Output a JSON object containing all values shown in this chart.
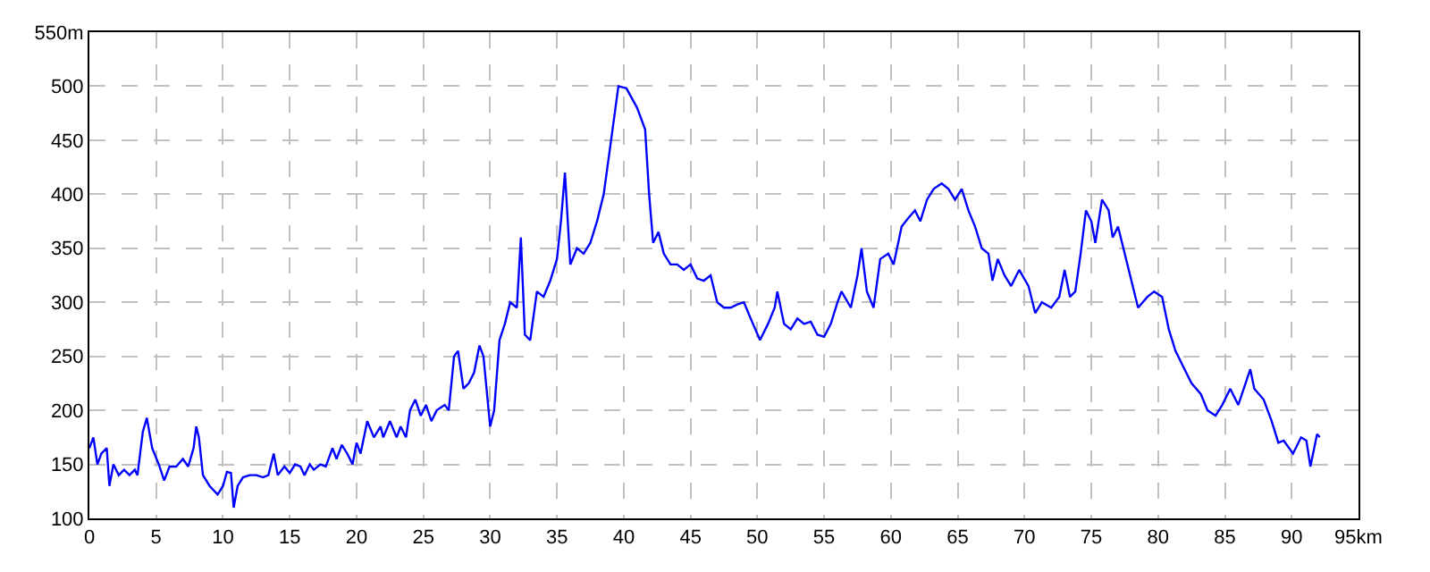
{
  "chart_data": {
    "type": "line",
    "grid": true,
    "marker": "none",
    "line_style": "solid",
    "xlim": [
      0,
      95
    ],
    "ylim": [
      100,
      550
    ],
    "xticks": [
      0,
      5,
      10,
      15,
      20,
      25,
      30,
      35,
      40,
      45,
      50,
      55,
      60,
      65,
      70,
      75,
      80,
      85,
      90,
      {
        "value": 95,
        "label": "95km"
      }
    ],
    "yticks": [
      100,
      150,
      200,
      250,
      300,
      350,
      400,
      450,
      500,
      {
        "value": 550,
        "label": "550m"
      }
    ],
    "series": [
      {
        "color": "#0000ff",
        "x": [
          0,
          0.3,
          0.6,
          0.9,
          1.3,
          1.5,
          1.8,
          2.2,
          2.6,
          3.0,
          3.4,
          3.6,
          4.0,
          4.3,
          4.7,
          5.2,
          5.6,
          6.0,
          6.5,
          7.0,
          7.4,
          7.8,
          8.0,
          8.2,
          8.5,
          9.0,
          9.6,
          10.0,
          10.3,
          10.6,
          10.8,
          11.1,
          11.5,
          12.0,
          12.5,
          13.0,
          13.4,
          13.8,
          14.1,
          14.6,
          15.0,
          15.4,
          15.8,
          16.1,
          16.5,
          16.8,
          17.3,
          17.7,
          18.2,
          18.5,
          18.9,
          19.3,
          19.7,
          20.0,
          20.3,
          20.8,
          21.3,
          21.8,
          22.0,
          22.5,
          23.0,
          23.3,
          23.7,
          24.0,
          24.4,
          24.8,
          25.2,
          25.6,
          26.0,
          26.6,
          26.9,
          27.3,
          27.6,
          28.0,
          28.4,
          28.8,
          29.2,
          29.5,
          30.0,
          30.3,
          30.7,
          31.1,
          31.5,
          32.0,
          32.3,
          32.6,
          33.0,
          33.5,
          34.0,
          34.5,
          35.0,
          35.3,
          35.6,
          36.0,
          36.5,
          37.0,
          37.5,
          38.0,
          38.5,
          39.0,
          39.6,
          40.2,
          41.0,
          41.6,
          41.9,
          42.2,
          42.6,
          43.0,
          43.5,
          44.0,
          44.5,
          45.0,
          45.5,
          46.0,
          46.5,
          47.0,
          47.5,
          48.0,
          48.5,
          49.0,
          49.5,
          50.2,
          50.8,
          51.3,
          51.5,
          52.0,
          52.5,
          53.0,
          53.5,
          54.0,
          54.5,
          55.0,
          55.5,
          56.0,
          56.3,
          57.0,
          57.5,
          57.8,
          58.2,
          58.7,
          59.2,
          59.8,
          60.2,
          60.8,
          61.3,
          61.8,
          62.2,
          62.7,
          63.2,
          63.8,
          64.3,
          64.8,
          65.3,
          65.8,
          66.3,
          66.8,
          67.3,
          67.6,
          68.0,
          68.5,
          69.0,
          69.6,
          70.3,
          70.8,
          71.3,
          72.0,
          72.6,
          73.0,
          73.4,
          73.8,
          74.2,
          74.6,
          75.0,
          75.3,
          75.8,
          76.3,
          76.6,
          77.0,
          77.5,
          78.0,
          78.5,
          79.2,
          79.7,
          80.3,
          80.8,
          81.3,
          81.9,
          82.5,
          83.2,
          83.7,
          84.3,
          84.8,
          85.4,
          86.0,
          86.9,
          87.2,
          87.9,
          88.5,
          89.0,
          89.4,
          90.1,
          90.7,
          91.1,
          91.4,
          91.9,
          92.1
        ],
        "values": [
          165,
          175,
          150,
          160,
          165,
          130,
          150,
          140,
          145,
          140,
          145,
          140,
          180,
          193,
          165,
          150,
          135,
          148,
          148,
          155,
          148,
          165,
          185,
          175,
          140,
          130,
          122,
          130,
          143,
          142,
          110,
          130,
          138,
          140,
          140,
          138,
          140,
          160,
          140,
          148,
          142,
          150,
          148,
          140,
          150,
          145,
          150,
          148,
          165,
          155,
          168,
          160,
          150,
          170,
          160,
          190,
          175,
          185,
          175,
          190,
          175,
          185,
          175,
          200,
          210,
          195,
          205,
          190,
          200,
          205,
          200,
          250,
          255,
          220,
          225,
          235,
          260,
          250,
          185,
          200,
          265,
          280,
          300,
          295,
          360,
          270,
          265,
          310,
          305,
          320,
          340,
          375,
          420,
          335,
          350,
          345,
          355,
          375,
          400,
          445,
          500,
          498,
          480,
          460,
          400,
          355,
          365,
          345,
          335,
          335,
          330,
          335,
          322,
          320,
          325,
          300,
          295,
          295,
          298,
          300,
          285,
          265,
          280,
          295,
          310,
          280,
          275,
          285,
          280,
          282,
          270,
          268,
          280,
          300,
          310,
          295,
          325,
          350,
          310,
          295,
          340,
          345,
          335,
          370,
          378,
          385,
          375,
          395,
          405,
          410,
          405,
          395,
          405,
          385,
          370,
          350,
          345,
          320,
          340,
          325,
          315,
          330,
          315,
          290,
          300,
          295,
          305,
          330,
          305,
          310,
          345,
          385,
          375,
          355,
          395,
          385,
          360,
          370,
          345,
          320,
          295,
          305,
          310,
          305,
          275,
          255,
          240,
          225,
          215,
          200,
          195,
          205,
          220,
          205,
          238,
          220,
          210,
          190,
          170,
          172,
          160,
          175,
          172,
          148,
          178,
          175
        ]
      }
    ]
  }
}
